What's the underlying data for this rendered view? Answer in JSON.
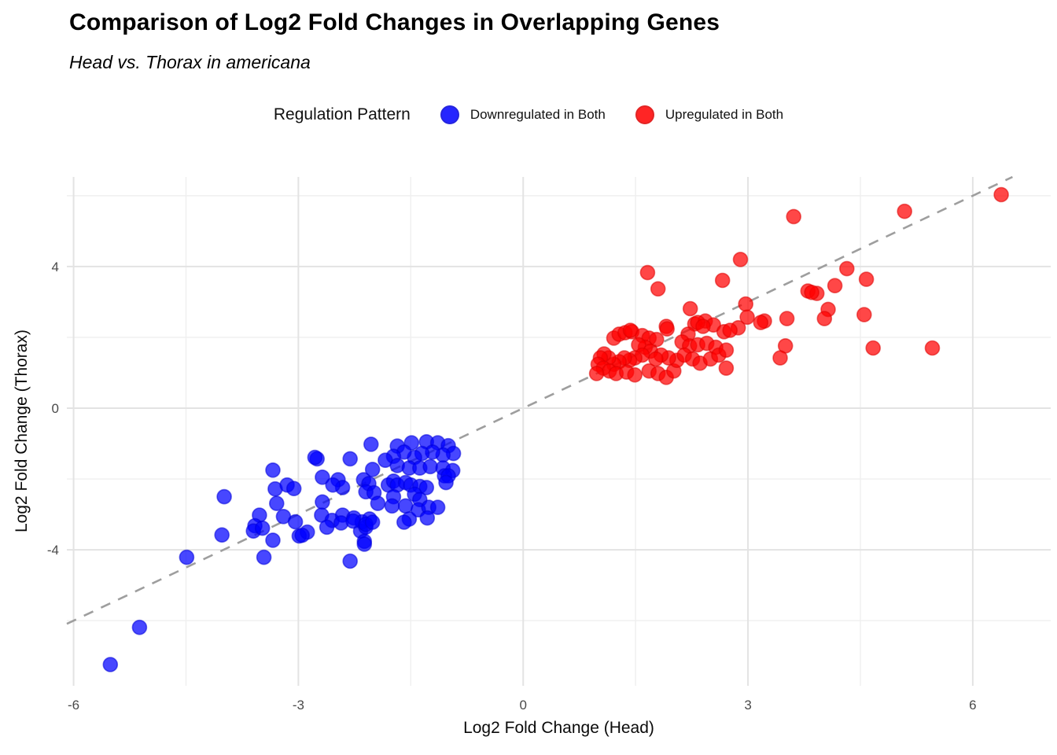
{
  "header": {
    "title": "Comparison of Log2 Fold Changes in Overlapping Genes",
    "subtitle": "Head vs. Thorax in americana"
  },
  "legend": {
    "title": "Regulation Pattern",
    "entries": [
      {
        "label": "Downregulated in Both",
        "fill": "#0000FF",
        "stroke": "#0000D8"
      },
      {
        "label": "Upregulated in Both",
        "fill": "#FF0000",
        "stroke": "#DD0000"
      }
    ]
  },
  "colors": {
    "grid_major": "#e3e3e3",
    "grid_minor": "#efefef",
    "reference_line": "#9e9e9e",
    "tick_label": "#4a4a4a",
    "point_opacity": 0.72
  },
  "chart_data": {
    "type": "scatter",
    "title": "Comparison of Log2 Fold Changes in Overlapping Genes",
    "subtitle": "Head vs. Thorax in americana",
    "xlabel": "Log2 Fold Change (Head)",
    "ylabel": "Log2 Fold Change (Thorax)",
    "xlim": [
      -6.09,
      7.04
    ],
    "ylim": [
      -7.84,
      6.53
    ],
    "x_ticks": [
      -6,
      -3,
      0,
      3,
      6
    ],
    "y_ticks": [
      -4,
      0,
      4
    ],
    "x_minor_gridlines": [
      -4.5,
      -1.5,
      1.5,
      4.5
    ],
    "y_minor_gridlines": [
      -6,
      -2,
      2,
      6
    ],
    "grid": true,
    "legend_position": "top",
    "reference_line": {
      "kind": "identity y=x",
      "style": "dashed",
      "color": "#9e9e9e"
    },
    "series": [
      {
        "name": "Downregulated in Both",
        "fill": "#0000FF",
        "stroke": "#0000D8",
        "points": [
          [
            -1.68,
            -1.07
          ],
          [
            -1.49,
            -0.98
          ],
          [
            -1.29,
            -0.95
          ],
          [
            -1.14,
            -0.98
          ],
          [
            -1.0,
            -1.06
          ],
          [
            -0.93,
            -1.28
          ],
          [
            -1.07,
            -1.32
          ],
          [
            -1.21,
            -1.24
          ],
          [
            -1.35,
            -1.28
          ],
          [
            -1.45,
            -1.39
          ],
          [
            -1.59,
            -1.24
          ],
          [
            -1.73,
            -1.36
          ],
          [
            -1.84,
            -1.47
          ],
          [
            -1.68,
            -1.62
          ],
          [
            -1.52,
            -1.69
          ],
          [
            -1.38,
            -1.69
          ],
          [
            -1.24,
            -1.65
          ],
          [
            -1.07,
            -1.69
          ],
          [
            -0.94,
            -1.76
          ],
          [
            -2.03,
            -1.02
          ],
          [
            -2.31,
            -1.43
          ],
          [
            -2.75,
            -1.43
          ],
          [
            -2.68,
            -1.95
          ],
          [
            -2.47,
            -2.02
          ],
          [
            -2.41,
            -2.24
          ],
          [
            -2.54,
            -2.17
          ],
          [
            -2.13,
            -2.02
          ],
          [
            -2.06,
            -2.13
          ],
          [
            -2.01,
            -1.73
          ],
          [
            -2.1,
            -2.36
          ],
          [
            -1.99,
            -2.39
          ],
          [
            -1.8,
            -2.17
          ],
          [
            -1.73,
            -2.06
          ],
          [
            -1.68,
            -2.17
          ],
          [
            -1.57,
            -2.1
          ],
          [
            -1.5,
            -2.17
          ],
          [
            -1.38,
            -2.21
          ],
          [
            -1.29,
            -2.24
          ],
          [
            -1.45,
            -2.43
          ],
          [
            -1.73,
            -2.5
          ],
          [
            -1.94,
            -2.69
          ],
          [
            -1.75,
            -2.76
          ],
          [
            -1.57,
            -2.76
          ],
          [
            -1.38,
            -2.58
          ],
          [
            -1.05,
            -1.91
          ],
          [
            -2.68,
            -2.65
          ],
          [
            -2.69,
            -3.02
          ],
          [
            -2.55,
            -3.17
          ],
          [
            -2.41,
            -3.02
          ],
          [
            -2.26,
            -3.1
          ],
          [
            -2.15,
            -3.21
          ],
          [
            -2.05,
            -3.13
          ],
          [
            -2.17,
            -3.47
          ],
          [
            -2.1,
            -3.36
          ],
          [
            -1.52,
            -3.13
          ],
          [
            -1.4,
            -2.87
          ],
          [
            -1.26,
            -2.8
          ],
          [
            -1.14,
            -2.8
          ],
          [
            -1.28,
            -3.1
          ],
          [
            -2.12,
            -3.76
          ],
          [
            -3.34,
            -1.75
          ],
          [
            -3.99,
            -2.5
          ],
          [
            -3.31,
            -2.28
          ],
          [
            -3.15,
            -2.17
          ],
          [
            -3.06,
            -2.27
          ],
          [
            -3.29,
            -2.69
          ],
          [
            -3.52,
            -3.02
          ],
          [
            -3.58,
            -3.32
          ],
          [
            -3.6,
            -3.47
          ],
          [
            -3.48,
            -3.39
          ],
          [
            -3.2,
            -3.06
          ],
          [
            -3.04,
            -3.21
          ],
          [
            -2.99,
            -3.61
          ],
          [
            -2.88,
            -3.5
          ],
          [
            -4.02,
            -3.58
          ],
          [
            -3.34,
            -3.73
          ],
          [
            -3.46,
            -4.21
          ],
          [
            -2.78,
            -1.39
          ],
          [
            -4.49,
            -4.21
          ],
          [
            -5.12,
            -6.19
          ],
          [
            -5.51,
            -7.24
          ],
          [
            -2.62,
            -3.36
          ],
          [
            -2.43,
            -3.24
          ],
          [
            -2.27,
            -3.19
          ],
          [
            -2.1,
            -3.28
          ],
          [
            -2.01,
            -3.22
          ],
          [
            -1.59,
            -3.22
          ],
          [
            -2.12,
            -3.84
          ],
          [
            -2.31,
            -4.32
          ],
          [
            -2.95,
            -3.59
          ],
          [
            -1.0,
            -1.91
          ],
          [
            -1.03,
            -2.1
          ]
        ]
      },
      {
        "name": "Upregulated in Both",
        "fill": "#FF0000",
        "stroke": "#DD0000",
        "points": [
          [
            1.21,
            1.98
          ],
          [
            1.28,
            2.09
          ],
          [
            1.36,
            2.13
          ],
          [
            1.45,
            2.16
          ],
          [
            1.59,
            2.05
          ],
          [
            1.68,
            1.98
          ],
          [
            1.78,
            1.94
          ],
          [
            1.91,
            2.31
          ],
          [
            2.29,
            2.38
          ],
          [
            2.43,
            2.46
          ],
          [
            2.54,
            2.35
          ],
          [
            2.68,
            2.16
          ],
          [
            2.2,
            2.09
          ],
          [
            2.12,
            1.87
          ],
          [
            2.22,
            1.76
          ],
          [
            2.33,
            1.79
          ],
          [
            2.45,
            1.83
          ],
          [
            2.57,
            1.72
          ],
          [
            1.63,
            1.72
          ],
          [
            1.54,
            1.79
          ],
          [
            1.7,
            1.61
          ],
          [
            1.59,
            1.5
          ],
          [
            1.49,
            1.42
          ],
          [
            1.42,
            1.35
          ],
          [
            1.35,
            1.42
          ],
          [
            1.28,
            1.31
          ],
          [
            1.21,
            1.24
          ],
          [
            1.14,
            1.42
          ],
          [
            1.08,
            1.53
          ],
          [
            1.03,
            1.42
          ],
          [
            1.0,
            1.24
          ],
          [
            1.07,
            1.13
          ],
          [
            1.15,
            1.05
          ],
          [
            1.24,
            0.98
          ],
          [
            1.38,
            1.02
          ],
          [
            1.49,
            0.94
          ],
          [
            1.68,
            1.05
          ],
          [
            1.8,
            0.98
          ],
          [
            1.91,
            0.87
          ],
          [
            2.01,
            1.05
          ],
          [
            2.05,
            1.35
          ],
          [
            1.94,
            1.42
          ],
          [
            1.84,
            1.5
          ],
          [
            1.77,
            1.39
          ],
          [
            2.15,
            1.5
          ],
          [
            2.26,
            1.39
          ],
          [
            2.36,
            1.27
          ],
          [
            2.5,
            1.39
          ],
          [
            2.61,
            1.5
          ],
          [
            2.71,
            1.64
          ],
          [
            2.71,
            1.13
          ],
          [
            0.98,
            0.98
          ],
          [
            2.9,
            4.2
          ],
          [
            2.66,
            3.61
          ],
          [
            4.32,
            3.94
          ],
          [
            4.58,
            3.64
          ],
          [
            4.16,
            3.46
          ],
          [
            3.8,
            3.31
          ],
          [
            3.92,
            3.24
          ],
          [
            2.97,
            2.94
          ],
          [
            4.07,
            2.79
          ],
          [
            4.02,
            2.53
          ],
          [
            4.55,
            2.64
          ],
          [
            3.52,
            2.53
          ],
          [
            3.22,
            2.46
          ],
          [
            2.99,
            2.57
          ],
          [
            2.87,
            2.27
          ],
          [
            2.76,
            2.2
          ],
          [
            3.5,
            1.76
          ],
          [
            3.43,
            1.42
          ],
          [
            4.67,
            1.7
          ],
          [
            5.46,
            1.7
          ],
          [
            1.66,
            3.83
          ],
          [
            1.8,
            3.37
          ],
          [
            2.23,
            2.81
          ],
          [
            2.33,
            2.42
          ],
          [
            2.4,
            2.31
          ],
          [
            3.17,
            2.42
          ],
          [
            1.92,
            2.24
          ],
          [
            1.43,
            2.2
          ],
          [
            3.85,
            3.27
          ],
          [
            3.61,
            5.41
          ],
          [
            5.09,
            5.56
          ],
          [
            6.38,
            6.03
          ]
        ]
      }
    ]
  }
}
